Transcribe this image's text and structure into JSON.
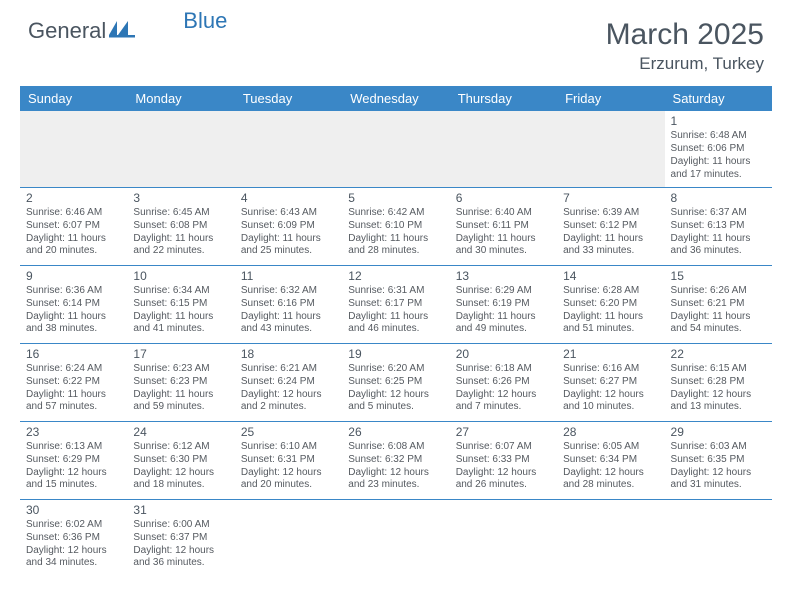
{
  "logo": {
    "part1": "General",
    "part2": "Blue"
  },
  "title": "March 2025",
  "location": "Erzurum, Turkey",
  "colors": {
    "header_bg": "#3a87c7",
    "header_fg": "#ffffff",
    "text": "#555a60",
    "title_text": "#4a5560",
    "row_border": "#3a87c7",
    "blank_bg": "#efefef",
    "page_bg": "#ffffff"
  },
  "typography": {
    "title_fontsize": 30,
    "location_fontsize": 17,
    "dayheader_fontsize": 13,
    "daynum_fontsize": 12,
    "cell_fontsize": 10,
    "logo_fontsize": 22
  },
  "day_headers": [
    "Sunday",
    "Monday",
    "Tuesday",
    "Wednesday",
    "Thursday",
    "Friday",
    "Saturday"
  ],
  "weeks": [
    [
      null,
      null,
      null,
      null,
      null,
      null,
      {
        "n": "1",
        "sr": "Sunrise: 6:48 AM",
        "ss": "Sunset: 6:06 PM",
        "dl1": "Daylight: 11 hours",
        "dl2": "and 17 minutes."
      }
    ],
    [
      {
        "n": "2",
        "sr": "Sunrise: 6:46 AM",
        "ss": "Sunset: 6:07 PM",
        "dl1": "Daylight: 11 hours",
        "dl2": "and 20 minutes."
      },
      {
        "n": "3",
        "sr": "Sunrise: 6:45 AM",
        "ss": "Sunset: 6:08 PM",
        "dl1": "Daylight: 11 hours",
        "dl2": "and 22 minutes."
      },
      {
        "n": "4",
        "sr": "Sunrise: 6:43 AM",
        "ss": "Sunset: 6:09 PM",
        "dl1": "Daylight: 11 hours",
        "dl2": "and 25 minutes."
      },
      {
        "n": "5",
        "sr": "Sunrise: 6:42 AM",
        "ss": "Sunset: 6:10 PM",
        "dl1": "Daylight: 11 hours",
        "dl2": "and 28 minutes."
      },
      {
        "n": "6",
        "sr": "Sunrise: 6:40 AM",
        "ss": "Sunset: 6:11 PM",
        "dl1": "Daylight: 11 hours",
        "dl2": "and 30 minutes."
      },
      {
        "n": "7",
        "sr": "Sunrise: 6:39 AM",
        "ss": "Sunset: 6:12 PM",
        "dl1": "Daylight: 11 hours",
        "dl2": "and 33 minutes."
      },
      {
        "n": "8",
        "sr": "Sunrise: 6:37 AM",
        "ss": "Sunset: 6:13 PM",
        "dl1": "Daylight: 11 hours",
        "dl2": "and 36 minutes."
      }
    ],
    [
      {
        "n": "9",
        "sr": "Sunrise: 6:36 AM",
        "ss": "Sunset: 6:14 PM",
        "dl1": "Daylight: 11 hours",
        "dl2": "and 38 minutes."
      },
      {
        "n": "10",
        "sr": "Sunrise: 6:34 AM",
        "ss": "Sunset: 6:15 PM",
        "dl1": "Daylight: 11 hours",
        "dl2": "and 41 minutes."
      },
      {
        "n": "11",
        "sr": "Sunrise: 6:32 AM",
        "ss": "Sunset: 6:16 PM",
        "dl1": "Daylight: 11 hours",
        "dl2": "and 43 minutes."
      },
      {
        "n": "12",
        "sr": "Sunrise: 6:31 AM",
        "ss": "Sunset: 6:17 PM",
        "dl1": "Daylight: 11 hours",
        "dl2": "and 46 minutes."
      },
      {
        "n": "13",
        "sr": "Sunrise: 6:29 AM",
        "ss": "Sunset: 6:19 PM",
        "dl1": "Daylight: 11 hours",
        "dl2": "and 49 minutes."
      },
      {
        "n": "14",
        "sr": "Sunrise: 6:28 AM",
        "ss": "Sunset: 6:20 PM",
        "dl1": "Daylight: 11 hours",
        "dl2": "and 51 minutes."
      },
      {
        "n": "15",
        "sr": "Sunrise: 6:26 AM",
        "ss": "Sunset: 6:21 PM",
        "dl1": "Daylight: 11 hours",
        "dl2": "and 54 minutes."
      }
    ],
    [
      {
        "n": "16",
        "sr": "Sunrise: 6:24 AM",
        "ss": "Sunset: 6:22 PM",
        "dl1": "Daylight: 11 hours",
        "dl2": "and 57 minutes."
      },
      {
        "n": "17",
        "sr": "Sunrise: 6:23 AM",
        "ss": "Sunset: 6:23 PM",
        "dl1": "Daylight: 11 hours",
        "dl2": "and 59 minutes."
      },
      {
        "n": "18",
        "sr": "Sunrise: 6:21 AM",
        "ss": "Sunset: 6:24 PM",
        "dl1": "Daylight: 12 hours",
        "dl2": "and 2 minutes."
      },
      {
        "n": "19",
        "sr": "Sunrise: 6:20 AM",
        "ss": "Sunset: 6:25 PM",
        "dl1": "Daylight: 12 hours",
        "dl2": "and 5 minutes."
      },
      {
        "n": "20",
        "sr": "Sunrise: 6:18 AM",
        "ss": "Sunset: 6:26 PM",
        "dl1": "Daylight: 12 hours",
        "dl2": "and 7 minutes."
      },
      {
        "n": "21",
        "sr": "Sunrise: 6:16 AM",
        "ss": "Sunset: 6:27 PM",
        "dl1": "Daylight: 12 hours",
        "dl2": "and 10 minutes."
      },
      {
        "n": "22",
        "sr": "Sunrise: 6:15 AM",
        "ss": "Sunset: 6:28 PM",
        "dl1": "Daylight: 12 hours",
        "dl2": "and 13 minutes."
      }
    ],
    [
      {
        "n": "23",
        "sr": "Sunrise: 6:13 AM",
        "ss": "Sunset: 6:29 PM",
        "dl1": "Daylight: 12 hours",
        "dl2": "and 15 minutes."
      },
      {
        "n": "24",
        "sr": "Sunrise: 6:12 AM",
        "ss": "Sunset: 6:30 PM",
        "dl1": "Daylight: 12 hours",
        "dl2": "and 18 minutes."
      },
      {
        "n": "25",
        "sr": "Sunrise: 6:10 AM",
        "ss": "Sunset: 6:31 PM",
        "dl1": "Daylight: 12 hours",
        "dl2": "and 20 minutes."
      },
      {
        "n": "26",
        "sr": "Sunrise: 6:08 AM",
        "ss": "Sunset: 6:32 PM",
        "dl1": "Daylight: 12 hours",
        "dl2": "and 23 minutes."
      },
      {
        "n": "27",
        "sr": "Sunrise: 6:07 AM",
        "ss": "Sunset: 6:33 PM",
        "dl1": "Daylight: 12 hours",
        "dl2": "and 26 minutes."
      },
      {
        "n": "28",
        "sr": "Sunrise: 6:05 AM",
        "ss": "Sunset: 6:34 PM",
        "dl1": "Daylight: 12 hours",
        "dl2": "and 28 minutes."
      },
      {
        "n": "29",
        "sr": "Sunrise: 6:03 AM",
        "ss": "Sunset: 6:35 PM",
        "dl1": "Daylight: 12 hours",
        "dl2": "and 31 minutes."
      }
    ],
    [
      {
        "n": "30",
        "sr": "Sunrise: 6:02 AM",
        "ss": "Sunset: 6:36 PM",
        "dl1": "Daylight: 12 hours",
        "dl2": "and 34 minutes."
      },
      {
        "n": "31",
        "sr": "Sunrise: 6:00 AM",
        "ss": "Sunset: 6:37 PM",
        "dl1": "Daylight: 12 hours",
        "dl2": "and 36 minutes."
      },
      null,
      null,
      null,
      null,
      null
    ]
  ]
}
